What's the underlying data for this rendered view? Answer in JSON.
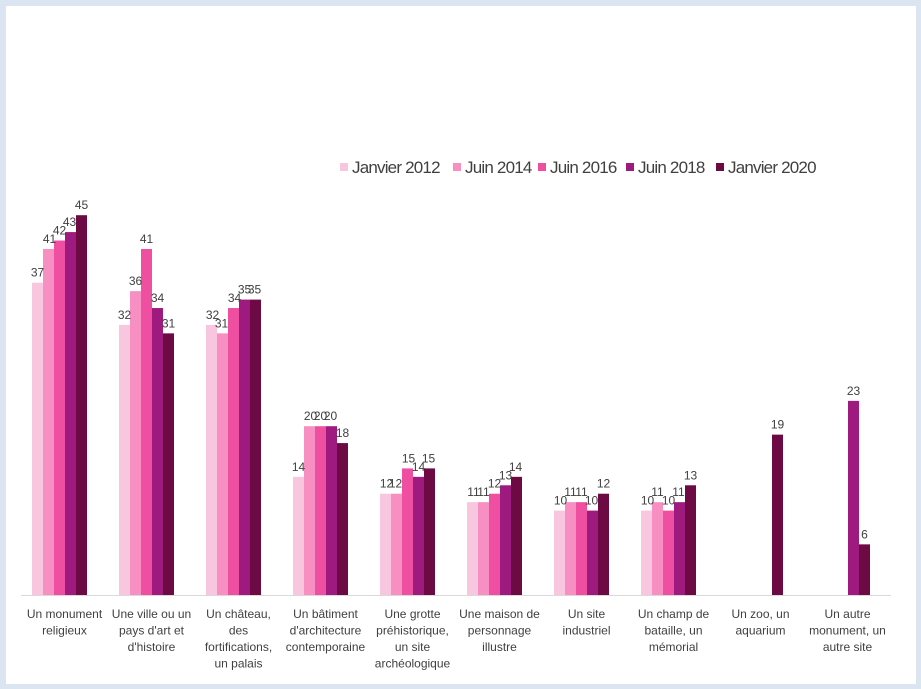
{
  "chart_data": {
    "type": "bar",
    "title": "",
    "xlabel": "",
    "ylabel": "",
    "ylim": [
      0,
      48
    ],
    "grid": false,
    "legend_position": "top-right",
    "categories": [
      [
        "Un monument",
        "religieux"
      ],
      [
        "Une ville ou un",
        "pays d'art et",
        "d'histoire"
      ],
      [
        "Un château,",
        "des",
        "fortifications,",
        "un palais"
      ],
      [
        "Un bâtiment",
        "d'architecture",
        "contemporaine"
      ],
      [
        "Une grotte",
        "préhistorique,",
        "un site",
        "archéologique"
      ],
      [
        "Une maison de",
        "personnage",
        "illustre"
      ],
      [
        "Un site",
        "industriel"
      ],
      [
        "Un champ de",
        "bataille, un",
        "mémorial"
      ],
      [
        "Un zoo, un",
        "aquarium"
      ],
      [
        "Un autre",
        "monument, un",
        "autre site"
      ]
    ],
    "series": [
      {
        "name": "Janvier 2012",
        "color": "#f9c6df",
        "values": [
          37,
          32,
          32,
          14,
          12,
          11,
          10,
          10,
          null,
          null
        ]
      },
      {
        "name": "Juin 2014",
        "color": "#f78fc3",
        "values": [
          41,
          36,
          31,
          20,
          12,
          11,
          11,
          11,
          null,
          null
        ]
      },
      {
        "name": "Juin 2016",
        "color": "#ee4fa0",
        "values": [
          42,
          41,
          34,
          20,
          15,
          12,
          11,
          10,
          null,
          null
        ]
      },
      {
        "name": "Juin 2018",
        "color": "#9e1a7e",
        "values": [
          43,
          34,
          35,
          20,
          14,
          13,
          10,
          11,
          null,
          23
        ]
      },
      {
        "name": "Janvier 2020",
        "color": "#6d0a43",
        "values": [
          45,
          31,
          35,
          18,
          15,
          14,
          12,
          13,
          19,
          6
        ]
      }
    ]
  }
}
